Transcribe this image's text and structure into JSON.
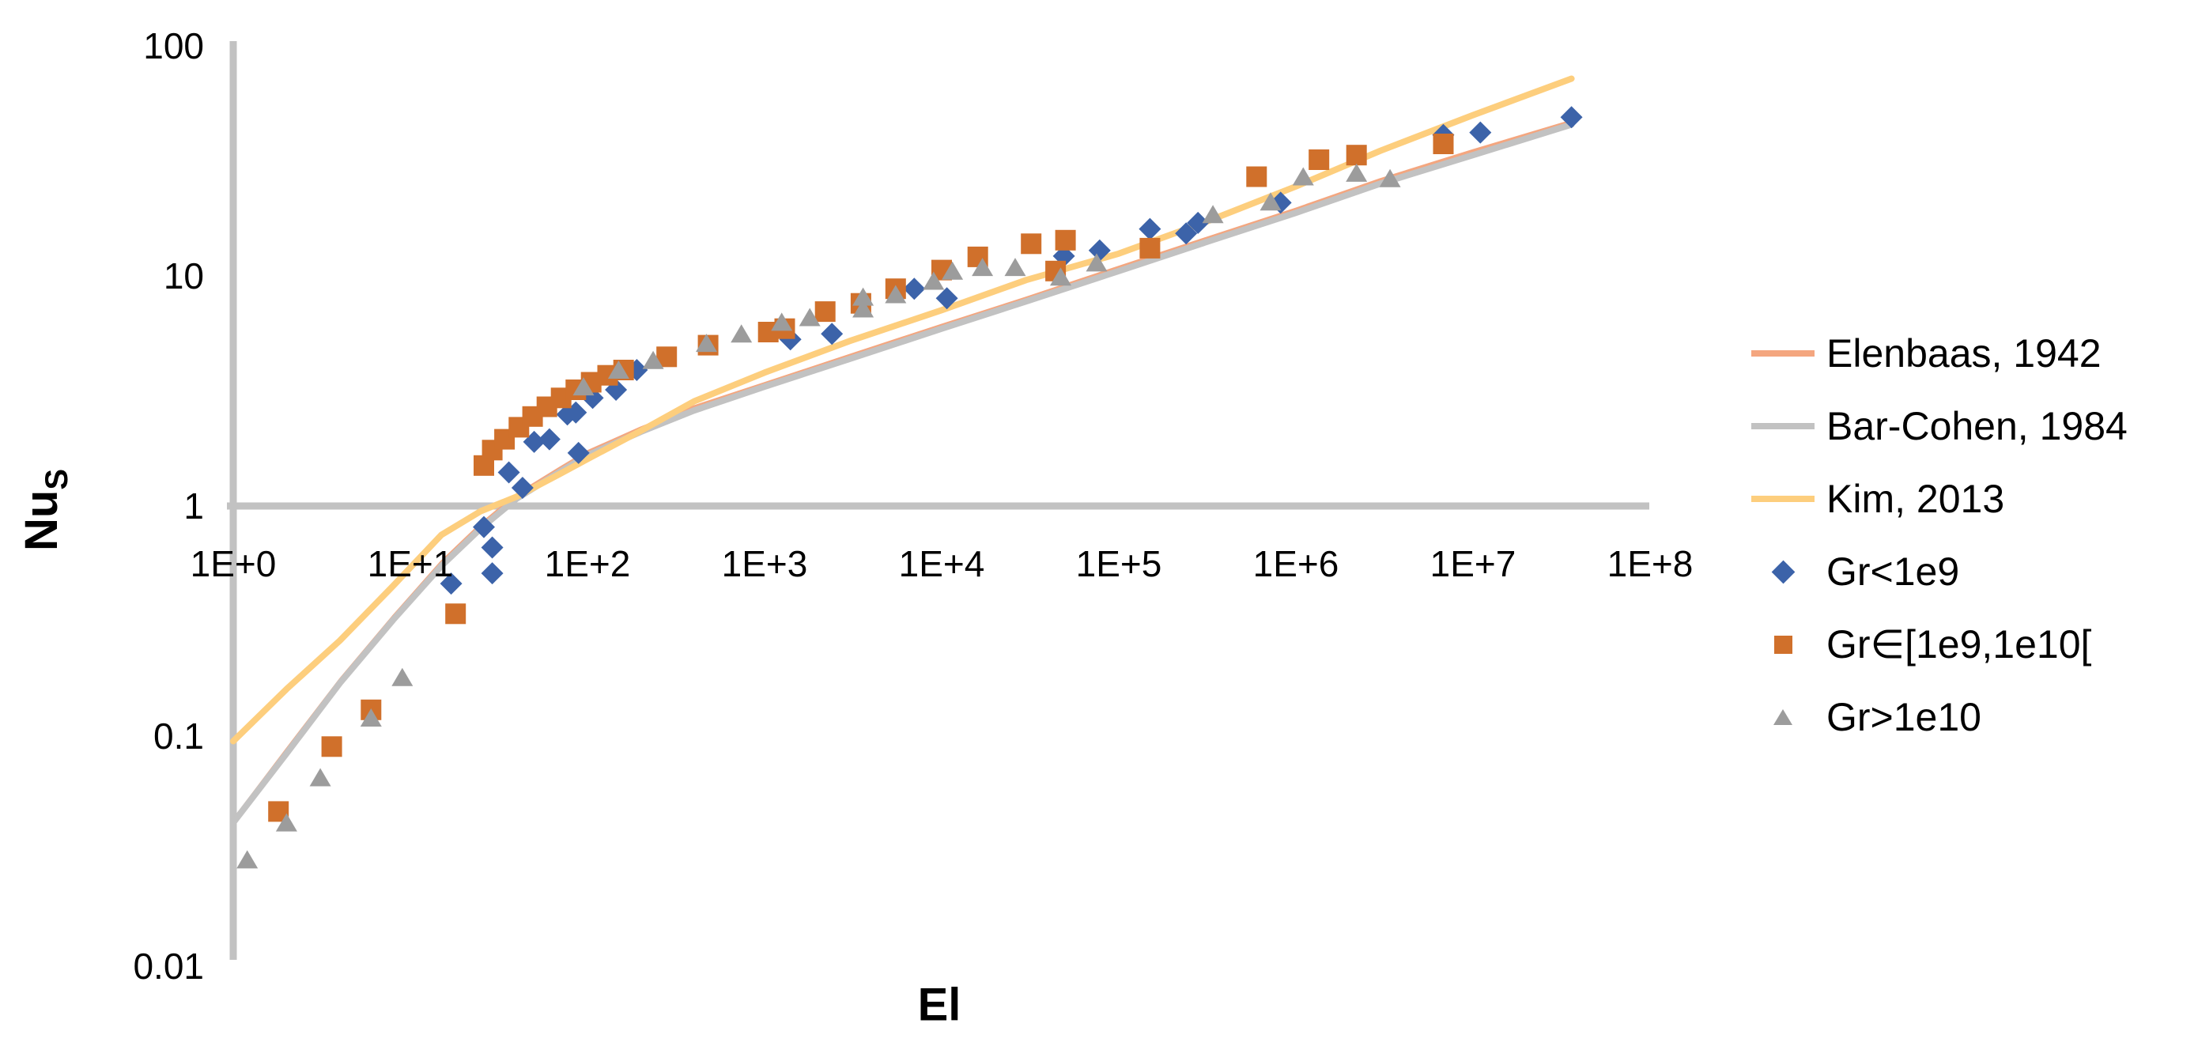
{
  "page": {
    "background": "#ffffff"
  },
  "chart_data": {
    "type": "scatter",
    "title": "",
    "xlabel": "El",
    "ylabel": "NuS",
    "ylabel_main": "Nu",
    "ylabel_sub": "S",
    "grid": "single horizontal gridline at Nu=1 (category axis)",
    "legend_position": "right",
    "axis_color": "#c2c2c2",
    "x_axis": {
      "scale": "log",
      "min": 1,
      "max": 100000000,
      "ticks": [
        "1E+0",
        "1E+1",
        "1E+2",
        "1E+3",
        "1E+4",
        "1E+5",
        "1E+6",
        "1E+7",
        "1E+8"
      ]
    },
    "y_axis": {
      "scale": "log",
      "min": 0.01,
      "max": 100,
      "ticks": [
        "100",
        "10",
        "1",
        "0.1",
        "0.01"
      ]
    },
    "line_series": [
      {
        "name": "Elenbaas, 1942",
        "color": "#f4a67f",
        "width": 4,
        "points": [
          [
            1,
            0.043
          ],
          [
            2,
            0.087
          ],
          [
            4,
            0.175
          ],
          [
            8,
            0.33
          ],
          [
            15,
            0.57
          ],
          [
            25,
            0.83
          ],
          [
            40,
            1.12
          ],
          [
            70,
            1.46
          ],
          [
            100,
            1.72
          ],
          [
            200,
            2.18
          ],
          [
            400,
            2.7
          ],
          [
            1000,
            3.4
          ],
          [
            3000,
            4.5
          ],
          [
            10000,
            6.1
          ],
          [
            30000,
            8.0
          ],
          [
            100000,
            10.9
          ],
          [
            300000,
            14.4
          ],
          [
            1000000,
            19.5
          ],
          [
            3000000,
            26.2
          ],
          [
            10000000,
            35
          ],
          [
            36000000,
            47
          ]
        ]
      },
      {
        "name": "Bar-Cohen, 1984",
        "color": "#c2c2c2",
        "width": 8,
        "points": [
          [
            1,
            0.042
          ],
          [
            2,
            0.084
          ],
          [
            4,
            0.17
          ],
          [
            8,
            0.32
          ],
          [
            15,
            0.55
          ],
          [
            25,
            0.8
          ],
          [
            40,
            1.08
          ],
          [
            70,
            1.41
          ],
          [
            100,
            1.66
          ],
          [
            200,
            2.1
          ],
          [
            400,
            2.6
          ],
          [
            1000,
            3.3
          ],
          [
            3000,
            4.35
          ],
          [
            10000,
            5.9
          ],
          [
            30000,
            7.75
          ],
          [
            100000,
            10.5
          ],
          [
            300000,
            13.9
          ],
          [
            1000000,
            18.8
          ],
          [
            3000000,
            25.2
          ],
          [
            10000000,
            33.5
          ],
          [
            36000000,
            45.5
          ]
        ]
      },
      {
        "name": "Kim, 2013",
        "color": "#fdce7d",
        "width": 8,
        "points": [
          [
            1,
            0.095
          ],
          [
            2,
            0.16
          ],
          [
            4,
            0.26
          ],
          [
            8,
            0.45
          ],
          [
            15,
            0.75
          ],
          [
            25,
            0.95
          ],
          [
            40,
            1.1
          ],
          [
            70,
            1.38
          ],
          [
            100,
            1.6
          ],
          [
            200,
            2.12
          ],
          [
            400,
            2.85
          ],
          [
            1000,
            3.8
          ],
          [
            3000,
            5.2
          ],
          [
            10000,
            7.1
          ],
          [
            30000,
            9.6
          ],
          [
            100000,
            12.5
          ],
          [
            300000,
            17
          ],
          [
            1000000,
            24.5
          ],
          [
            3000000,
            35
          ],
          [
            10000000,
            50
          ],
          [
            36000000,
            72
          ]
        ]
      }
    ],
    "scatter_series": [
      {
        "name": "Gr<1e9",
        "marker": "diamond",
        "color": "#3c63a9",
        "points": [
          [
            17,
            0.46
          ],
          [
            26,
            0.81
          ],
          [
            29,
            0.66
          ],
          [
            29,
            0.51
          ],
          [
            36,
            1.4
          ],
          [
            43,
            1.2
          ],
          [
            50,
            1.9
          ],
          [
            61,
            1.95
          ],
          [
            77,
            2.5
          ],
          [
            86,
            2.55
          ],
          [
            89,
            1.7
          ],
          [
            107,
            2.95
          ],
          [
            145,
            3.2
          ],
          [
            190,
            3.9
          ],
          [
            1400,
            5.3
          ],
          [
            2400,
            5.6
          ],
          [
            7000,
            8.8
          ],
          [
            10700,
            8.0
          ],
          [
            49000,
            12.2
          ],
          [
            78000,
            12.9
          ],
          [
            150000,
            16
          ],
          [
            240000,
            15.3
          ],
          [
            280000,
            17
          ],
          [
            820000,
            20.8
          ],
          [
            6800000,
            41
          ],
          [
            11000000,
            42
          ],
          [
            36000000,
            49
          ]
        ]
      },
      {
        "name": "Gr∈[1e9,1e10[",
        "marker": "square",
        "color": "#d0702b",
        "points": [
          [
            1.8,
            0.047
          ],
          [
            3.6,
            0.09
          ],
          [
            6,
            0.13
          ],
          [
            18,
            0.34
          ],
          [
            26,
            1.5
          ],
          [
            29,
            1.75
          ],
          [
            34,
            1.95
          ],
          [
            41,
            2.2
          ],
          [
            49,
            2.45
          ],
          [
            59,
            2.7
          ],
          [
            71,
            2.95
          ],
          [
            86,
            3.2
          ],
          [
            105,
            3.45
          ],
          [
            130,
            3.7
          ],
          [
            160,
            3.9
          ],
          [
            280,
            4.45
          ],
          [
            480,
            5.0
          ],
          [
            1050,
            5.7
          ],
          [
            1300,
            5.9
          ],
          [
            2200,
            7.0
          ],
          [
            3500,
            7.6
          ],
          [
            5500,
            8.8
          ],
          [
            10000,
            10.6
          ],
          [
            16000,
            12.1
          ],
          [
            32000,
            13.8
          ],
          [
            50000,
            14.3
          ],
          [
            44000,
            10.5
          ],
          [
            150000,
            13.2
          ],
          [
            600000,
            27
          ],
          [
            1350000,
            32
          ],
          [
            2200000,
            33.5
          ],
          [
            6800000,
            37.5
          ]
        ]
      },
      {
        "name": "Gr>1e10",
        "marker": "triangle",
        "color": "#9c9c9c",
        "points": [
          [
            1.2,
            0.029
          ],
          [
            2.0,
            0.042
          ],
          [
            3.1,
            0.066
          ],
          [
            6,
            0.12
          ],
          [
            9,
            0.18
          ],
          [
            95,
            3.3
          ],
          [
            150,
            3.9
          ],
          [
            235,
            4.3
          ],
          [
            470,
            5.1
          ],
          [
            740,
            5.6
          ],
          [
            1250,
            6.3
          ],
          [
            1800,
            6.6
          ],
          [
            3600,
            8.1
          ],
          [
            3600,
            7.2
          ],
          [
            5500,
            8.3
          ],
          [
            9000,
            9.5
          ],
          [
            11500,
            10.5
          ],
          [
            17000,
            10.9
          ],
          [
            26000,
            10.9
          ],
          [
            47000,
            9.9
          ],
          [
            75000,
            11.4
          ],
          [
            340000,
            18.5
          ],
          [
            720000,
            21
          ],
          [
            1100000,
            27
          ],
          [
            2200000,
            28
          ],
          [
            3400000,
            26.5
          ]
        ]
      }
    ]
  }
}
